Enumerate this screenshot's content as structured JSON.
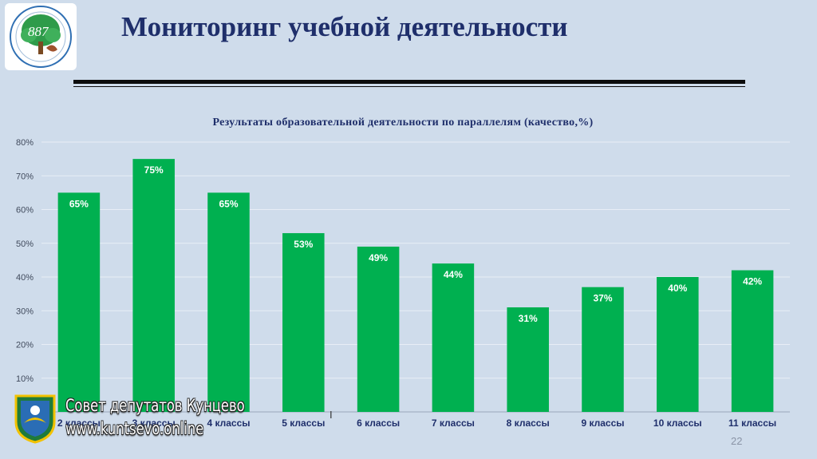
{
  "header": {
    "title": "Мониторинг учебной деятельности",
    "logo_text": "887"
  },
  "chart_data": {
    "type": "bar",
    "title": "Результаты образовательной деятельности по параллелям (качество,%)",
    "categories": [
      "2 классы",
      "3 классы",
      "4 классы",
      "5 классы",
      "6 классы",
      "7 классы",
      "8 классы",
      "9 классы",
      "10 классы",
      "11 классы"
    ],
    "values": [
      65,
      75,
      65,
      53,
      49,
      44,
      31,
      37,
      40,
      42
    ],
    "data_labels": [
      "65%",
      "75%",
      "65%",
      "53%",
      "49%",
      "44%",
      "31%",
      "37%",
      "40%",
      "42%"
    ],
    "ylim": [
      0,
      80
    ],
    "yticks": [
      "10%",
      "20%",
      "30%",
      "40%",
      "50%",
      "60%",
      "70%",
      "80%"
    ],
    "grid": true,
    "bar_color": "#00b050"
  },
  "footer": {
    "page_number": "22",
    "cursor_glyph": "I"
  },
  "watermark": {
    "line1": "Совет депутатов Кунцево",
    "line2": "www.kuntsevo.online"
  },
  "colors": {
    "background": "#cfdceb",
    "title": "#1f2f6b",
    "bar": "#00b050",
    "category_label": "#1f2f6b"
  }
}
